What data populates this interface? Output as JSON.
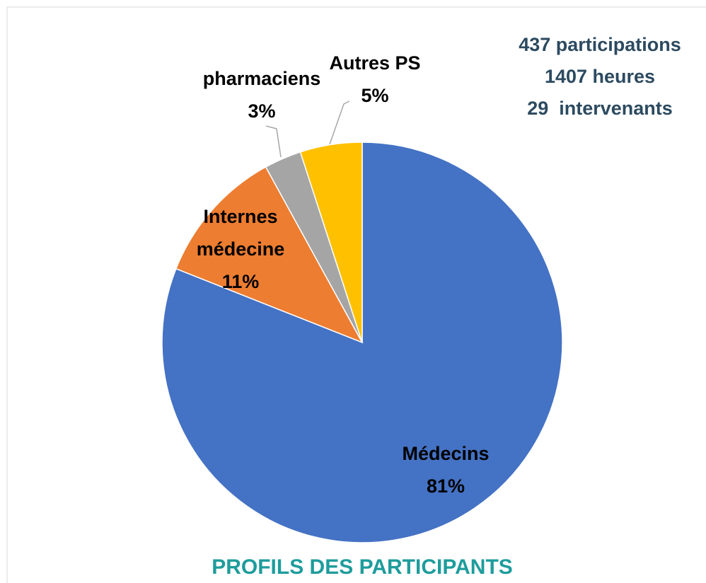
{
  "chart_data": {
    "type": "pie",
    "title": "PROFILS DES PARTICIPANTS",
    "annotations": [
      "437 participations",
      "1407 heures",
      "29  intervenants"
    ],
    "categories": [
      "Médecins",
      "Internes médecine",
      "pharmaciens",
      "Autres PS"
    ],
    "values": [
      81,
      11,
      3,
      5
    ],
    "value_labels": [
      "81%",
      "11%",
      "3%",
      "5%"
    ],
    "colors": [
      "#4472c4",
      "#ed7d31",
      "#a5a5a5",
      "#ffc000"
    ]
  }
}
